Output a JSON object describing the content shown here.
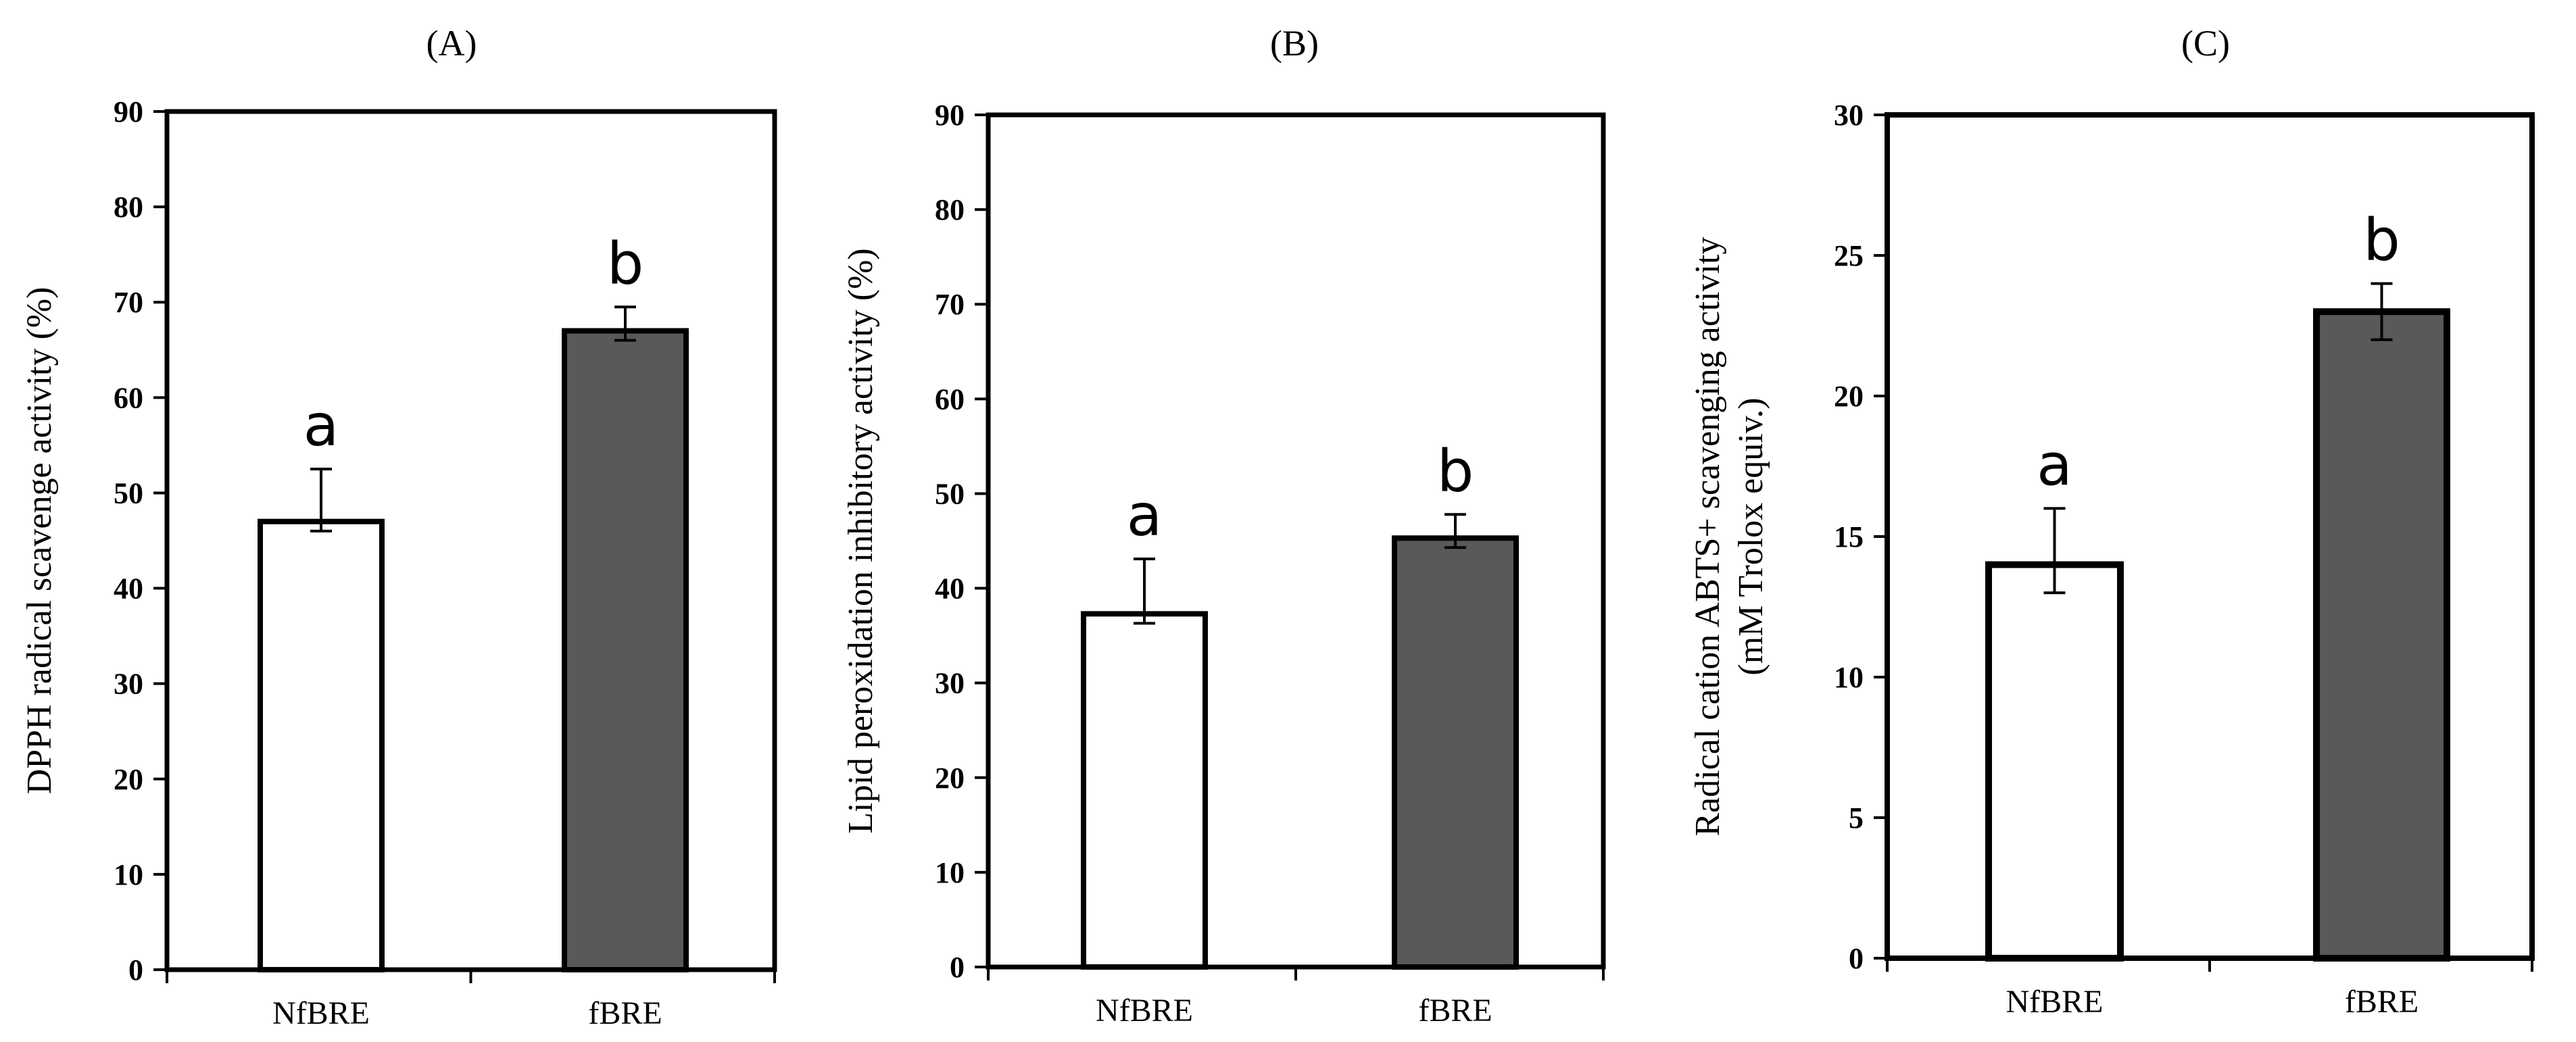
{
  "colors": {
    "axis": "#000000",
    "bar_white": "#ffffff",
    "bar_gray": "#595959"
  },
  "chart_data": [
    {
      "type": "bar",
      "panel_label": "(A)",
      "ylabel": [
        "DPPH radical scavenge activity  (%)"
      ],
      "ylim": [
        0,
        90
      ],
      "yticks": [
        "0",
        "10",
        "20",
        "30",
        "40",
        "50",
        "60",
        "70",
        "80",
        "90"
      ],
      "categories": [
        "NfBRE",
        "fBRE"
      ],
      "values": [
        47,
        67
      ],
      "errors": [
        5.5,
        2.5
      ],
      "error_lower": [
        1,
        1
      ],
      "fills": [
        "#ffffff",
        "#595959"
      ],
      "letters": [
        "a",
        "b"
      ]
    },
    {
      "type": "bar",
      "panel_label": "(B)",
      "ylabel": [
        "Lipid peroxidation inhibitory activity  (%)"
      ],
      "ylim": [
        0,
        90
      ],
      "yticks": [
        "0",
        "10",
        "20",
        "30",
        "40",
        "50",
        "60",
        "70",
        "80",
        "90"
      ],
      "categories": [
        "NfBRE",
        "fBRE"
      ],
      "values": [
        37.3,
        45.3
      ],
      "errors": [
        5.8,
        2.5
      ],
      "error_lower": [
        1,
        1
      ],
      "fills": [
        "#ffffff",
        "#595959"
      ],
      "letters": [
        "a",
        "b"
      ]
    },
    {
      "type": "bar",
      "panel_label": "(C)",
      "ylabel": [
        "Radical cation ABTS+ scavenging activity",
        "(mM Trolox equiv.)"
      ],
      "ylim": [
        0,
        30
      ],
      "yticks": [
        "0",
        "5",
        "10",
        "15",
        "20",
        "25",
        "30"
      ],
      "categories": [
        "NfBRE",
        "fBRE"
      ],
      "values": [
        14,
        23
      ],
      "errors": [
        2,
        1
      ],
      "error_lower": [
        1,
        1
      ],
      "fills": [
        "#ffffff",
        "#595959"
      ],
      "letters": [
        "a",
        "b"
      ]
    }
  ]
}
